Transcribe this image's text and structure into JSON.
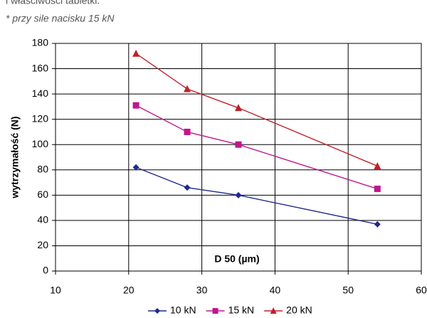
{
  "chart_data": {
    "type": "line",
    "pretitle": "i właściwości tabletki.",
    "subtitle": "* przy sile nacisku 15 kN",
    "y_label": "wytrzymałość (N)",
    "x_label": "D 50  (µm)",
    "xlim": [
      10,
      60
    ],
    "xticks": [
      10,
      20,
      30,
      40,
      50,
      60
    ],
    "ylim": [
      0,
      180
    ],
    "yticks": [
      0,
      20,
      40,
      60,
      80,
      100,
      120,
      140,
      160,
      180
    ],
    "grid": true,
    "legend": "bottom",
    "series": [
      {
        "name": "10 kN",
        "color": "#1f2a8c",
        "marker": "diamond",
        "x": [
          21,
          28,
          35,
          54
        ],
        "values": [
          82,
          66,
          60,
          37
        ]
      },
      {
        "name": "15 kN",
        "color": "#c0168e",
        "marker": "square",
        "x": [
          21,
          28,
          35,
          54
        ],
        "values": [
          131,
          110,
          100,
          65
        ]
      },
      {
        "name": "20 kN",
        "color": "#c0202a",
        "marker": "triangle",
        "x": [
          21,
          28,
          35,
          54
        ],
        "values": [
          172,
          144,
          129,
          83
        ]
      }
    ]
  }
}
